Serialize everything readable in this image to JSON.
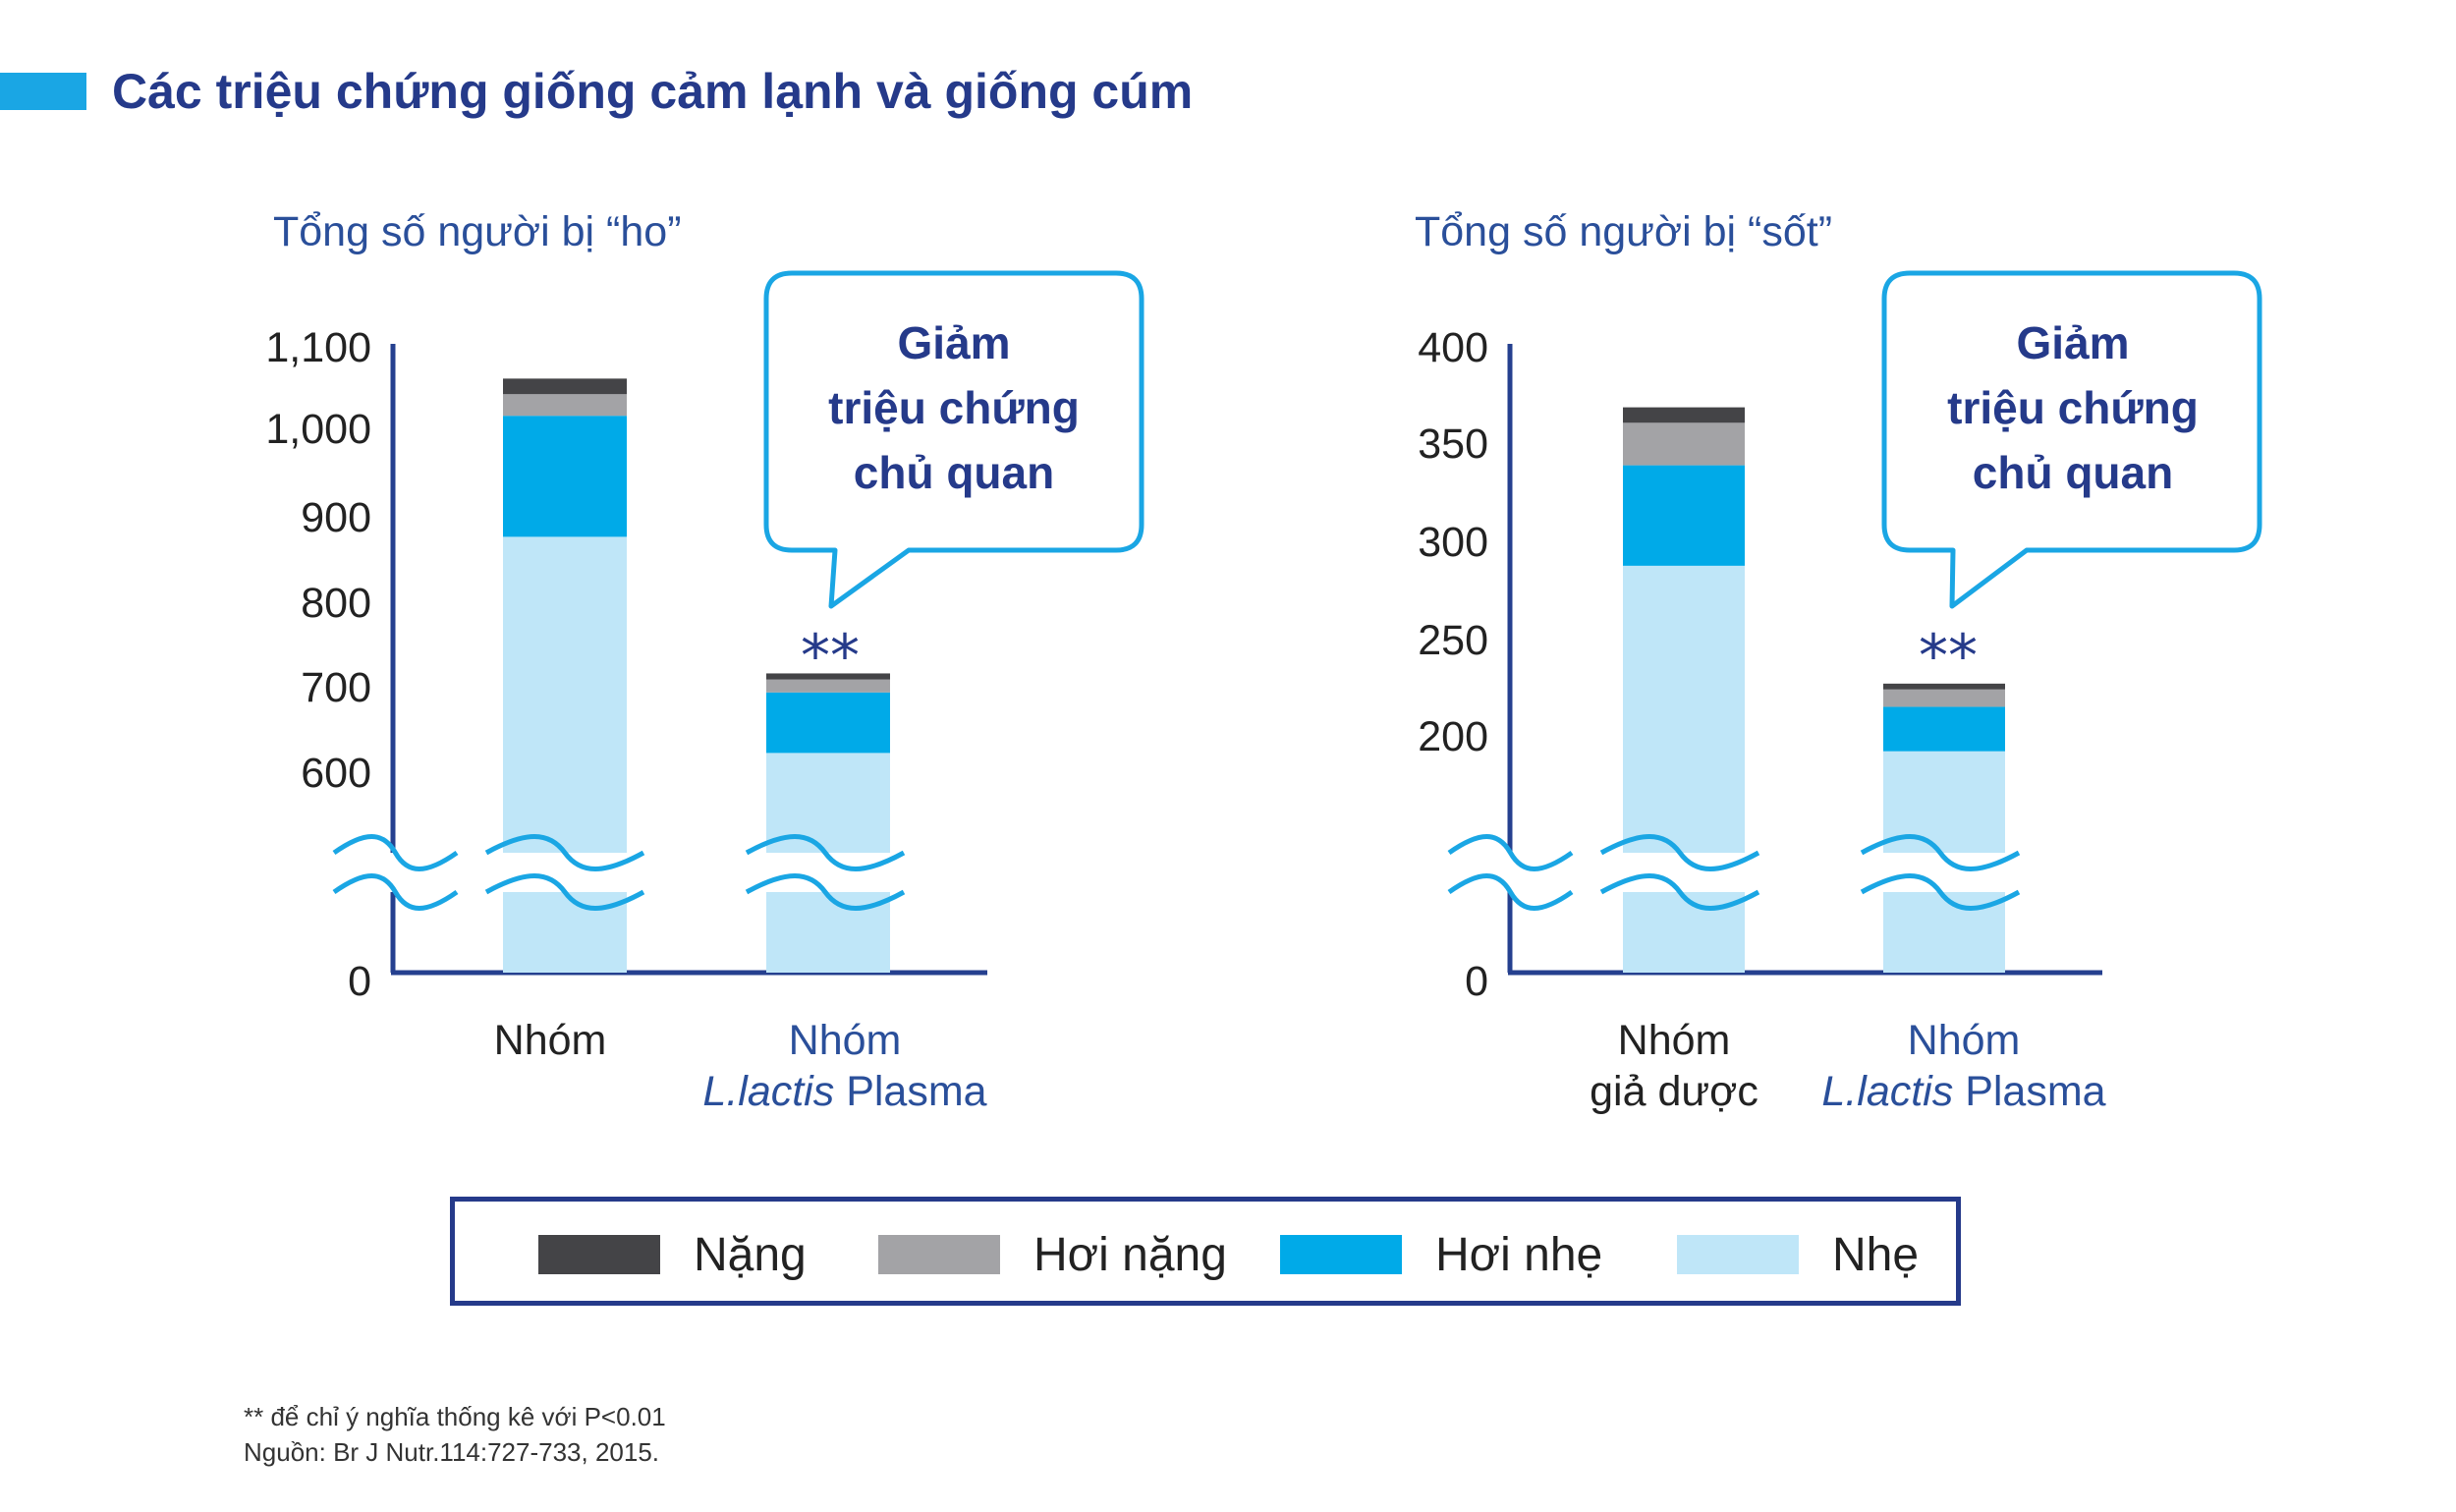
{
  "header": {
    "title": "Các triệu chứng giống cảm lạnh và giống cúm",
    "accent_color": "#1aa6e4"
  },
  "legend": [
    {
      "label": "Nặng",
      "color": "#444447"
    },
    {
      "label": "Hơi nặng",
      "color": "#a3a3a6"
    },
    {
      "label": "Hơi nhẹ",
      "color": "#00aae8"
    },
    {
      "label": "Nhẹ",
      "color": "#bfe6f8"
    }
  ],
  "footnotes": {
    "significance": "** để chỉ ý nghĩa thống kê với P<0.01",
    "source": "Nguồn: Br J Nutr.114:727-733, 2015."
  },
  "chart_data": [
    {
      "type": "bar",
      "stacked": true,
      "title": "Tổng số người bị “ho”",
      "yticks": [
        "1,100",
        "1,000",
        "900",
        "800",
        "700",
        "600",
        "0"
      ],
      "axis_break": true,
      "categories": [
        {
          "lines": [
            "Nhóm"
          ],
          "italic_part": "",
          "highlight": false
        },
        {
          "lines": [
            "Nhóm",
            "Plasma"
          ],
          "italic_part": "L.lactis",
          "highlight": true
        }
      ],
      "series": [
        {
          "name": "Nhẹ",
          "values": [
            870,
            620
          ]
        },
        {
          "name": "Hơi nhẹ",
          "values": [
            140,
            70
          ]
        },
        {
          "name": "Hơi nặng",
          "values": [
            25,
            15
          ]
        },
        {
          "name": "Nặng",
          "values": [
            18,
            7
          ]
        }
      ],
      "significance_marker": "**",
      "callout": [
        "Giảm",
        "triệu chứng",
        "chủ quan"
      ]
    },
    {
      "type": "bar",
      "stacked": true,
      "title": "Tổng số người bị “sốt”",
      "yticks": [
        "400",
        "350",
        "300",
        "250",
        "200",
        "0"
      ],
      "axis_break": true,
      "categories": [
        {
          "lines": [
            "Nhóm",
            "giả dược"
          ],
          "italic_part": "",
          "highlight": false
        },
        {
          "lines": [
            "Nhóm",
            "Plasma"
          ],
          "italic_part": "L.lactis",
          "highlight": true
        }
      ],
      "series": [
        {
          "name": "Nhẹ",
          "values": [
            286,
            190
          ]
        },
        {
          "name": "Hơi nhẹ",
          "values": [
            52,
            23
          ]
        },
        {
          "name": "Hơi nặng",
          "values": [
            22,
            9
          ]
        },
        {
          "name": "Nặng",
          "values": [
            8,
            3
          ]
        }
      ],
      "significance_marker": "**",
      "callout": [
        "Giảm",
        "triệu chứng",
        "chủ quan"
      ]
    }
  ]
}
